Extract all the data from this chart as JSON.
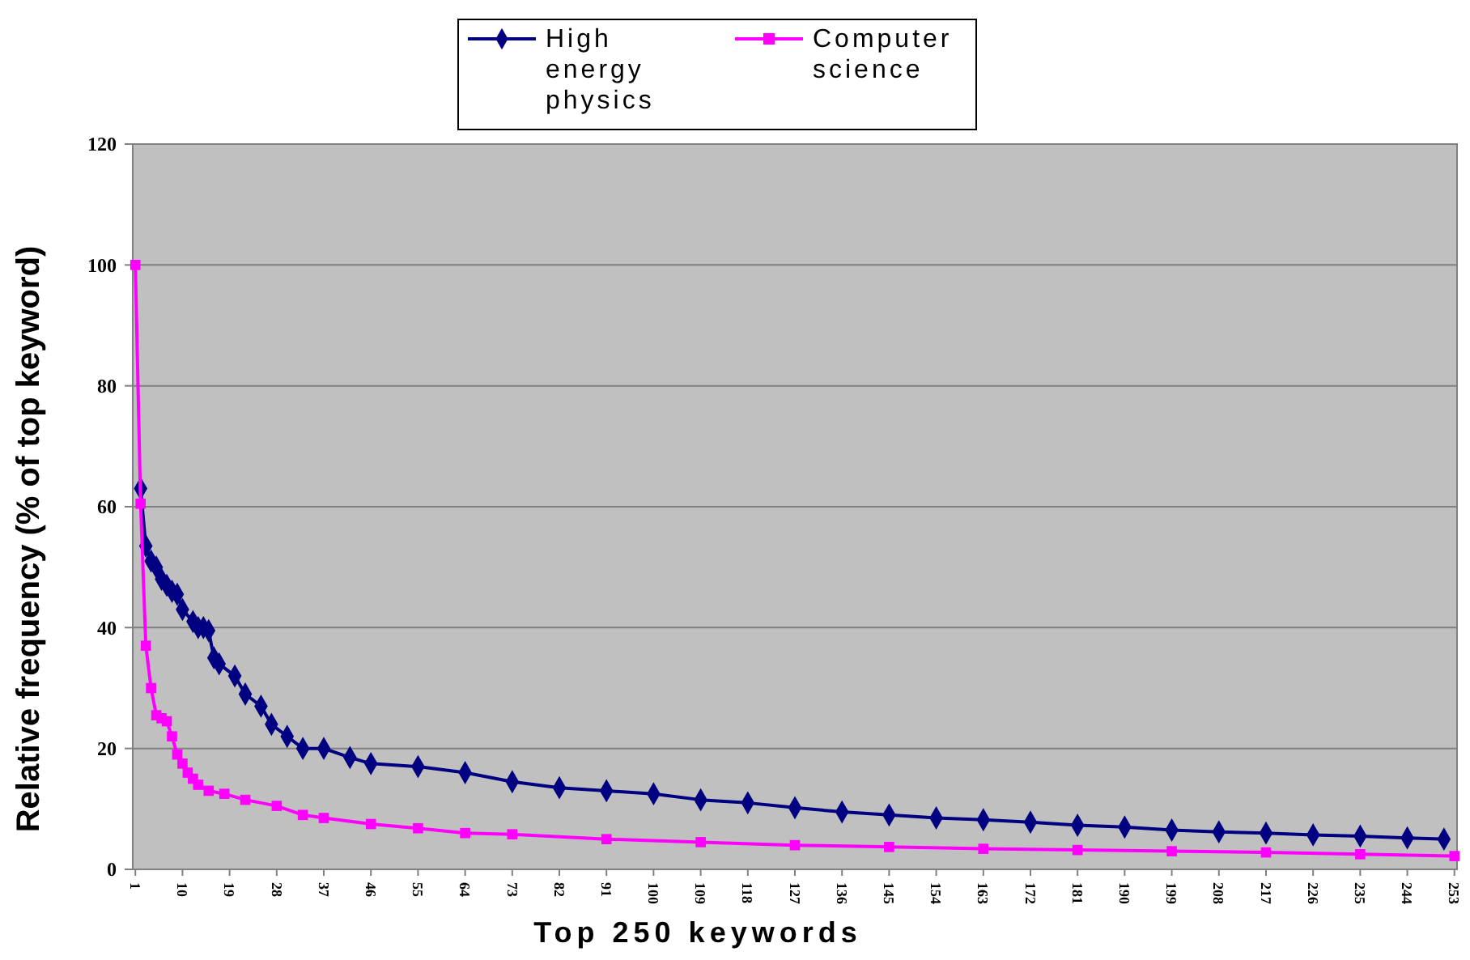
{
  "chart_data": {
    "type": "line",
    "xlabel": "Top 250 keywords",
    "ylabel": "Relative frequency (% of top keyword)",
    "xlim": [
      0.5,
      253.5
    ],
    "xticks": [
      1,
      10,
      19,
      28,
      37,
      46,
      55,
      64,
      73,
      82,
      91,
      100,
      109,
      118,
      127,
      136,
      145,
      154,
      163,
      172,
      181,
      190,
      199,
      208,
      217,
      226,
      235,
      244,
      253
    ],
    "ylim": [
      0,
      120
    ],
    "yticks": [
      0,
      20,
      40,
      60,
      80,
      100,
      120
    ],
    "grid": "y",
    "legend": "top",
    "series": [
      {
        "name": "High energy physics",
        "color": "#000080",
        "marker": "diamond",
        "x": [
          2,
          3,
          4,
          5,
          6,
          7,
          8,
          9,
          10,
          12,
          13,
          14,
          15,
          16,
          17,
          20,
          22,
          25,
          27,
          30,
          33,
          37,
          42,
          46,
          55,
          64,
          73,
          82,
          91,
          100,
          109,
          118,
          127,
          136,
          145,
          154,
          163,
          172,
          181,
          190,
          199,
          208,
          217,
          226,
          235,
          244,
          251
        ],
        "values": [
          63,
          53.5,
          51,
          50,
          48,
          47,
          46,
          45.5,
          43,
          41,
          40,
          40,
          39.5,
          35,
          34,
          32,
          29,
          27,
          24,
          22,
          20,
          20,
          18.5,
          17.5,
          17,
          16,
          14.5,
          13.5,
          13,
          12.5,
          11.5,
          11,
          10.2,
          9.5,
          9,
          8.5,
          8.2,
          7.8,
          7.3,
          7,
          6.5,
          6.2,
          6,
          5.7,
          5.5,
          5.2,
          5
        ]
      },
      {
        "name": "Computer science",
        "color": "#ff00ff",
        "marker": "square",
        "x": [
          1,
          2,
          3,
          4,
          5,
          6,
          7,
          8,
          9,
          10,
          11,
          12,
          13,
          15,
          18,
          22,
          28,
          33,
          37,
          46,
          55,
          64,
          73,
          91,
          109,
          127,
          145,
          163,
          181,
          199,
          217,
          235,
          253
        ],
        "values": [
          100,
          60.5,
          37,
          30,
          25.5,
          25,
          24.5,
          22,
          19,
          17.5,
          16,
          15,
          14,
          13,
          12.5,
          11.5,
          10.5,
          9,
          8.5,
          7.5,
          6.8,
          6,
          5.8,
          5,
          4.5,
          4,
          3.7,
          3.4,
          3.2,
          3,
          2.8,
          2.5,
          2.2
        ]
      }
    ]
  }
}
